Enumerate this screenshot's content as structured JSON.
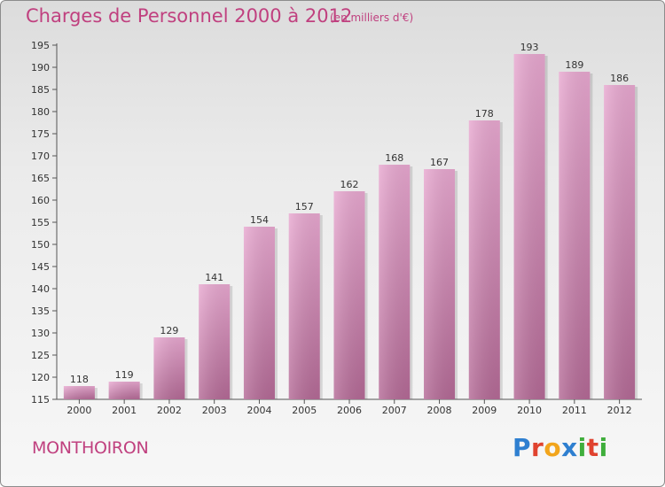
{
  "title": "Charges de Personnel 2000 à 2012",
  "subtitle": "(en milliers d'€)",
  "commune": "MONTHOIRON",
  "brand": {
    "letters": [
      "P",
      "r",
      "o",
      "x",
      "i",
      "t",
      "i"
    ],
    "colors": [
      "#2e7fd0",
      "#e0432f",
      "#f2a51c",
      "#2e7fd0",
      "#3fae3c",
      "#e0432f",
      "#3fae3c"
    ]
  },
  "colors": {
    "accent": "#c0407f",
    "bar_top": "#e8a8d0",
    "bar_bottom": "#b46a96"
  },
  "chart_data": {
    "type": "bar",
    "categories": [
      "2000",
      "2001",
      "2002",
      "2003",
      "2004",
      "2005",
      "2006",
      "2007",
      "2008",
      "2009",
      "2010",
      "2011",
      "2012"
    ],
    "values": [
      118,
      119,
      129,
      141,
      154,
      157,
      162,
      168,
      167,
      178,
      193,
      189,
      186
    ],
    "ylim": [
      115,
      195
    ],
    "yticks": [
      115,
      120,
      125,
      130,
      135,
      140,
      145,
      150,
      155,
      160,
      165,
      170,
      175,
      180,
      185,
      190,
      195
    ],
    "grid": false,
    "legend": "none"
  }
}
